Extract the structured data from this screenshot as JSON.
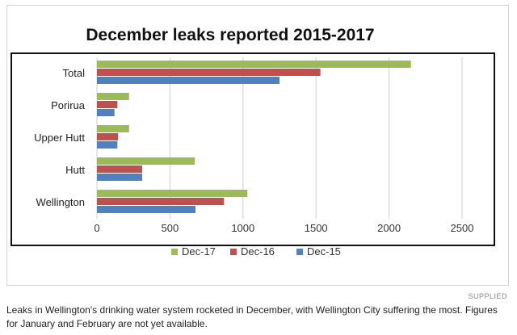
{
  "chart_data": {
    "type": "bar",
    "orientation": "horizontal",
    "title": "December leaks reported 2015-2017",
    "categories": [
      "Total",
      "Porirua",
      "Upper Hutt",
      "Hutt",
      "Wellington"
    ],
    "series": [
      {
        "name": "Dec-17",
        "color": "#9bbb59",
        "values": [
          2150,
          220,
          220,
          670,
          1030
        ]
      },
      {
        "name": "Dec-16",
        "color": "#c0504d",
        "values": [
          1530,
          140,
          145,
          310,
          870
        ]
      },
      {
        "name": "Dec-15",
        "color": "#4f81bd",
        "values": [
          1250,
          120,
          140,
          310,
          675
        ]
      }
    ],
    "xlim": [
      0,
      2500
    ],
    "xticks": [
      "0",
      "500",
      "1000",
      "1500",
      "2000",
      "2500"
    ],
    "grid": true,
    "legend_position": "bottom"
  },
  "credit": "SUPPLIED",
  "caption": "Leaks in Wellington's drinking water system rocketed in December, with Wellington City suffering the most. Figures for January and February are not yet available."
}
